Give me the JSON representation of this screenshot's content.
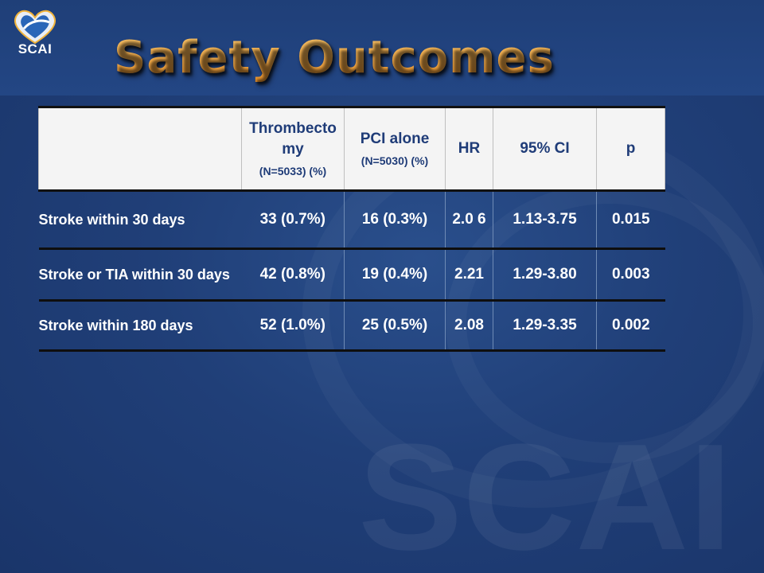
{
  "logo": {
    "text": "SCAI"
  },
  "title": "Safety Outcomes",
  "watermark": {
    "text": "SCAI"
  },
  "table": {
    "headers": [
      {
        "main": "",
        "sub": ""
      },
      {
        "main": "Thrombecto my",
        "sub": "(N=5033) (%)"
      },
      {
        "main": "PCI alone",
        "sub": "(N=5030) (%)"
      },
      {
        "main": "HR",
        "sub": ""
      },
      {
        "main": "95% CI",
        "sub": ""
      },
      {
        "main": "p",
        "sub": ""
      }
    ],
    "rows": [
      {
        "label": "Stroke within 30 days",
        "thrombectomy": "33 (0.7%)",
        "pci": "16 (0.3%)",
        "hr": "2.0 6",
        "ci": "1.13-3.75",
        "p": "0.015"
      },
      {
        "label": "Stroke or TIA within 30 days",
        "thrombectomy": "42 (0.8%)",
        "pci": "19 (0.4%)",
        "hr": "2.21",
        "ci": "1.29-3.80",
        "p": "0.003"
      },
      {
        "label": "Stroke within 180 days",
        "thrombectomy": "52 (1.0%)",
        "pci": "25 (0.5%)",
        "hr": "2.08",
        "ci": "1.29-3.35",
        "p": "0.002"
      }
    ]
  },
  "colors": {
    "background": "#203f78",
    "title": "#f0a53a",
    "header_bg": "#f4f4f4",
    "header_text": "#1f3c78",
    "cell_text": "#ffffff"
  }
}
